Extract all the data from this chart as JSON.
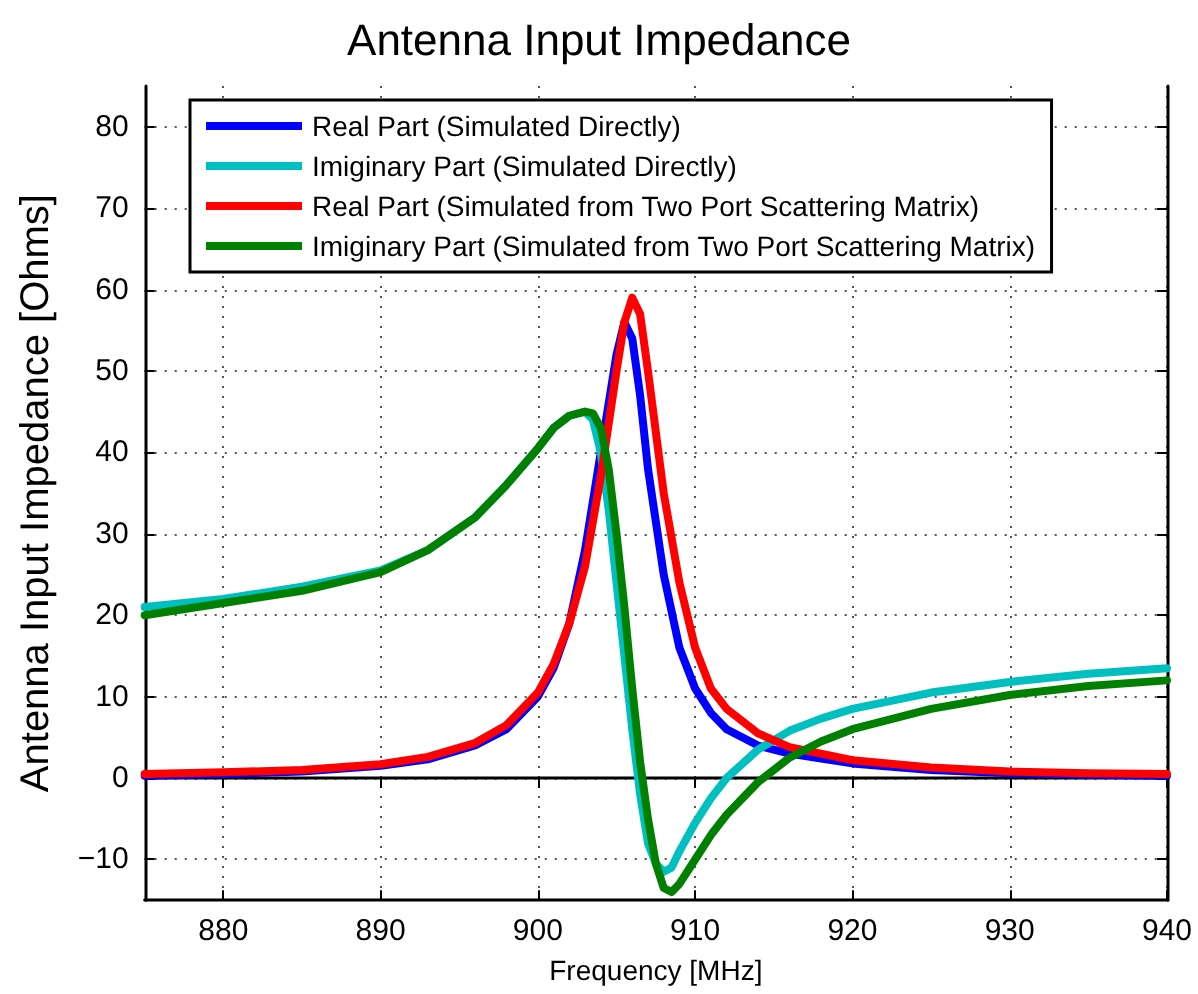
{
  "chart_data": {
    "type": "line",
    "title": "Antenna Input Impedance",
    "xlabel": "Frequency [MHz]",
    "ylabel": "Antenna Input Impedance [Ohms]",
    "xlim": [
      875,
      940
    ],
    "xticks": [
      880,
      890,
      900,
      910,
      920,
      930,
      940
    ],
    "ylim": [
      -15,
      85
    ],
    "yticks": [
      -10,
      0,
      10,
      20,
      30,
      40,
      50,
      60,
      70,
      80
    ],
    "grid": true,
    "legend": "top",
    "marker": "none",
    "line_style": "solid",
    "series": [
      {
        "name": "Real Part (Simulated Directly)",
        "color": "#0000ff",
        "x": [
          875,
          880,
          885,
          890,
          893,
          896,
          898,
          900,
          901,
          902,
          903,
          904,
          905,
          905.5,
          906,
          906.5,
          907,
          908,
          909,
          910,
          911,
          912,
          914,
          916,
          920,
          925,
          930,
          935,
          940
        ],
        "values": [
          0.3,
          0.5,
          0.8,
          1.5,
          2.3,
          4,
          6,
          10,
          13.5,
          19,
          28,
          40,
          52,
          56,
          54,
          47,
          38,
          25,
          16,
          11,
          8,
          6,
          4,
          3,
          1.8,
          1,
          0.6,
          0.4,
          0.3
        ]
      },
      {
        "name": "Imiginary Part (Simulated Directly)",
        "color": "#00bfbf",
        "x": [
          875,
          880,
          885,
          890,
          893,
          896,
          898,
          900,
          901,
          902,
          903,
          903.5,
          904,
          904.5,
          905,
          905.5,
          906,
          906.5,
          907,
          907.5,
          908,
          908.5,
          909,
          910,
          911,
          912,
          914,
          916,
          918,
          920,
          925,
          930,
          935,
          940
        ],
        "values": [
          21,
          22,
          23.5,
          25.5,
          28,
          32,
          36,
          40.5,
          43,
          44.5,
          45,
          44,
          40,
          33,
          24,
          15,
          6,
          -2,
          -8,
          -10.5,
          -11.5,
          -11,
          -9,
          -5.5,
          -2.5,
          0,
          3.5,
          5.8,
          7.3,
          8.5,
          10.5,
          11.8,
          12.8,
          13.5
        ]
      },
      {
        "name": "Real Part (Simulated from Two Port Scattering Matrix)",
        "color": "#ff0000",
        "x": [
          875,
          880,
          885,
          890,
          893,
          896,
          898,
          900,
          901,
          902,
          903,
          904,
          905,
          905.5,
          906,
          906.5,
          907,
          908,
          909,
          910,
          911,
          912,
          914,
          916,
          920,
          925,
          930,
          935,
          940
        ],
        "values": [
          0.5,
          0.7,
          1,
          1.7,
          2.6,
          4.3,
          6.5,
          10.5,
          14,
          19,
          26,
          37,
          50,
          56,
          59,
          57,
          50,
          35,
          24,
          16,
          11,
          8.5,
          5.5,
          3.8,
          2.2,
          1.3,
          0.8,
          0.6,
          0.5
        ]
      },
      {
        "name": "Imiginary Part (Simulated from Two Port Scattering Matrix)",
        "color": "#008000",
        "x": [
          875,
          880,
          885,
          890,
          893,
          896,
          898,
          900,
          901,
          902,
          903,
          903.5,
          904,
          904.5,
          905,
          905.5,
          906,
          906.5,
          907,
          907.5,
          908,
          908.5,
          909,
          910,
          911,
          912,
          914,
          916,
          918,
          920,
          925,
          930,
          935,
          940
        ],
        "values": [
          20,
          21.5,
          23,
          25.3,
          28,
          32,
          36,
          40.5,
          43,
          44.5,
          45,
          44.8,
          43,
          38,
          30,
          21,
          11,
          2,
          -5,
          -10.5,
          -13.5,
          -14,
          -13,
          -10,
          -7,
          -4.5,
          -0.5,
          2.5,
          4.5,
          6,
          8.5,
          10.2,
          11.3,
          12
        ]
      }
    ]
  }
}
